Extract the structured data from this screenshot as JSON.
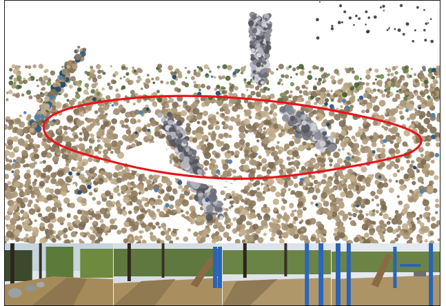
{
  "figure": {
    "panel": "point-cloud-reconstruction",
    "highlight_color": "#e8141b",
    "cloud_colors": {
      "ground": [
        "#9d8a6c",
        "#b29c7a",
        "#8a7659",
        "#c2ae8c",
        "#7c6b52",
        "#a89679"
      ],
      "sky_blue": [
        "#2f5c8a",
        "#4a7fb0",
        "#1f4a70"
      ],
      "trunk": [
        "#6e6e78",
        "#8c8c96",
        "#b4b4be",
        "#55555e",
        "#d2d2da"
      ],
      "foliage": [
        "#4f6b3a",
        "#6a8a4a",
        "#3d5a2c"
      ]
    },
    "thumbnails": [
      {
        "name": "view-1",
        "scene": "path-with-rocks"
      },
      {
        "name": "view-2",
        "scene": "path-with-slide"
      },
      {
        "name": "view-3",
        "scene": "swing-poles"
      },
      {
        "name": "view-4",
        "scene": "playground-slide"
      }
    ]
  }
}
